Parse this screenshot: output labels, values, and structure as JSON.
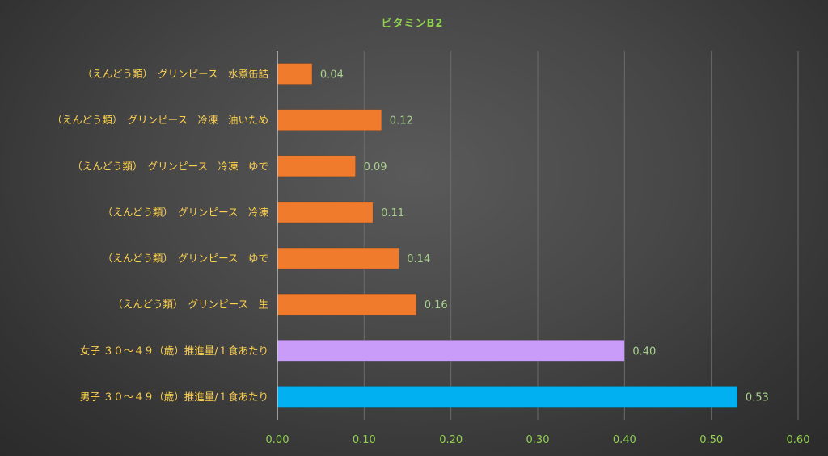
{
  "chart_data": {
    "type": "bar",
    "orientation": "horizontal",
    "title": "ビタミンB2",
    "categories": [
      "（えんどう類）　グリンピース　水煮缶詰",
      "（えんどう類）　グリンピース　冷凍　油いため",
      "（えんどう類）　グリンピース　冷凍　ゆで",
      "（えんどう類）　グリンピース　冷凍",
      "（えんどう類）　グリンピース　ゆで",
      "（えんどう類）　グリンピース　生",
      "女子 ３０～４９（歳）推進量/１食あたり",
      "男子 ３０～４９（歳）推進量/１食あたり"
    ],
    "values": [
      0.04,
      0.12,
      0.09,
      0.11,
      0.14,
      0.16,
      0.4,
      0.53
    ],
    "value_labels": [
      "0.04",
      "0.12",
      "0.09",
      "0.11",
      "0.14",
      "0.16",
      "0.40",
      "0.53"
    ],
    "bar_colors": [
      "#f07b2c",
      "#f07b2c",
      "#f07b2c",
      "#f07b2c",
      "#f07b2c",
      "#f07b2c",
      "#c89cf8",
      "#00b0f0"
    ],
    "xlim": [
      0,
      0.6
    ],
    "xticks": [
      "0.00",
      "0.10",
      "0.20",
      "0.30",
      "0.40",
      "0.50",
      "0.60"
    ],
    "grid": true,
    "legend": "none",
    "colors": {
      "title": "#8fd14f",
      "category_labels": "#ffd24d",
      "value_labels": "#a9d18e",
      "tick_labels": "#8fd14f",
      "gridlines": "#6b6b6b",
      "axis": "#d9d9d9"
    }
  }
}
